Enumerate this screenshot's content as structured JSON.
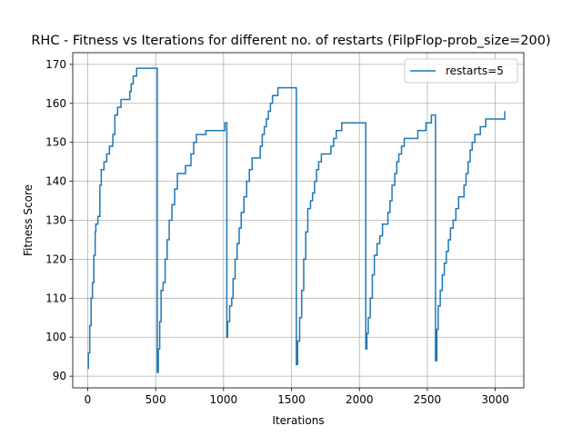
{
  "chart_data": {
    "type": "line",
    "title": "RHC - Fitness vs Iterations for different no. of restarts (FilpFlop-prob_size=200)",
    "xlabel": "Iterations",
    "ylabel": "Fitness Score",
    "xlim": [
      -110,
      3210
    ],
    "ylim": [
      87,
      173
    ],
    "xticks": [
      0,
      500,
      1000,
      1500,
      2000,
      2500,
      3000
    ],
    "yticks": [
      90,
      100,
      110,
      120,
      130,
      140,
      150,
      160,
      170
    ],
    "grid": true,
    "legend": "top-right",
    "series": [
      {
        "name": "restarts=5",
        "color": "#1f77b4",
        "points": [
          [
            0,
            92
          ],
          [
            5,
            96
          ],
          [
            15,
            103
          ],
          [
            25,
            110
          ],
          [
            35,
            114
          ],
          [
            45,
            121
          ],
          [
            55,
            127
          ],
          [
            60,
            129
          ],
          [
            75,
            131
          ],
          [
            90,
            139
          ],
          [
            100,
            143
          ],
          [
            120,
            145
          ],
          [
            140,
            147
          ],
          [
            160,
            149
          ],
          [
            185,
            152
          ],
          [
            200,
            157
          ],
          [
            220,
            159
          ],
          [
            245,
            161
          ],
          [
            300,
            161
          ],
          [
            310,
            163
          ],
          [
            320,
            165
          ],
          [
            335,
            167
          ],
          [
            360,
            169
          ],
          [
            511,
            169
          ],
          [
            512,
            91
          ],
          [
            520,
            97
          ],
          [
            530,
            104
          ],
          [
            540,
            112
          ],
          [
            555,
            114
          ],
          [
            570,
            120
          ],
          [
            585,
            125
          ],
          [
            600,
            130
          ],
          [
            620,
            134
          ],
          [
            640,
            138
          ],
          [
            660,
            142
          ],
          [
            700,
            142
          ],
          [
            720,
            144
          ],
          [
            750,
            144
          ],
          [
            760,
            147
          ],
          [
            780,
            150
          ],
          [
            800,
            152
          ],
          [
            850,
            152
          ],
          [
            870,
            153
          ],
          [
            1000,
            153
          ],
          [
            1010,
            155
          ],
          [
            1023,
            155
          ],
          [
            1024,
            100
          ],
          [
            1030,
            104
          ],
          [
            1045,
            108
          ],
          [
            1060,
            110
          ],
          [
            1070,
            115
          ],
          [
            1085,
            120
          ],
          [
            1100,
            124
          ],
          [
            1115,
            128
          ],
          [
            1130,
            132
          ],
          [
            1150,
            136
          ],
          [
            1170,
            140
          ],
          [
            1190,
            143
          ],
          [
            1210,
            146
          ],
          [
            1260,
            146
          ],
          [
            1270,
            149
          ],
          [
            1285,
            152
          ],
          [
            1300,
            154
          ],
          [
            1315,
            156
          ],
          [
            1330,
            158
          ],
          [
            1345,
            160
          ],
          [
            1360,
            162
          ],
          [
            1390,
            162
          ],
          [
            1400,
            164
          ],
          [
            1535,
            164
          ],
          [
            1536,
            93
          ],
          [
            1545,
            99
          ],
          [
            1560,
            105
          ],
          [
            1575,
            112
          ],
          [
            1590,
            120
          ],
          [
            1605,
            127
          ],
          [
            1620,
            133
          ],
          [
            1640,
            135
          ],
          [
            1655,
            137
          ],
          [
            1670,
            140
          ],
          [
            1685,
            143
          ],
          [
            1700,
            145
          ],
          [
            1720,
            147
          ],
          [
            1780,
            147
          ],
          [
            1790,
            149
          ],
          [
            1810,
            151
          ],
          [
            1830,
            153
          ],
          [
            1860,
            153
          ],
          [
            1870,
            155
          ],
          [
            2046,
            155
          ],
          [
            2047,
            97
          ],
          [
            2055,
            101
          ],
          [
            2065,
            105
          ],
          [
            2080,
            110
          ],
          [
            2095,
            116
          ],
          [
            2110,
            121
          ],
          [
            2130,
            124
          ],
          [
            2150,
            126
          ],
          [
            2170,
            129
          ],
          [
            2200,
            129
          ],
          [
            2210,
            132
          ],
          [
            2225,
            135
          ],
          [
            2240,
            139
          ],
          [
            2260,
            142
          ],
          [
            2275,
            145
          ],
          [
            2290,
            147
          ],
          [
            2310,
            149
          ],
          [
            2330,
            151
          ],
          [
            2420,
            151
          ],
          [
            2430,
            153
          ],
          [
            2480,
            153
          ],
          [
            2490,
            155
          ],
          [
            2520,
            155
          ],
          [
            2530,
            157
          ],
          [
            2559,
            157
          ],
          [
            2560,
            94
          ],
          [
            2570,
            102
          ],
          [
            2580,
            108
          ],
          [
            2595,
            112
          ],
          [
            2610,
            116
          ],
          [
            2625,
            119
          ],
          [
            2640,
            122
          ],
          [
            2655,
            125
          ],
          [
            2670,
            128
          ],
          [
            2690,
            130
          ],
          [
            2710,
            133
          ],
          [
            2730,
            136
          ],
          [
            2760,
            136
          ],
          [
            2770,
            139
          ],
          [
            2785,
            142
          ],
          [
            2800,
            145
          ],
          [
            2815,
            148
          ],
          [
            2830,
            150
          ],
          [
            2850,
            152
          ],
          [
            2880,
            152
          ],
          [
            2890,
            154
          ],
          [
            2920,
            154
          ],
          [
            2930,
            156
          ],
          [
            3060,
            156
          ],
          [
            3070,
            158
          ]
        ]
      }
    ]
  }
}
